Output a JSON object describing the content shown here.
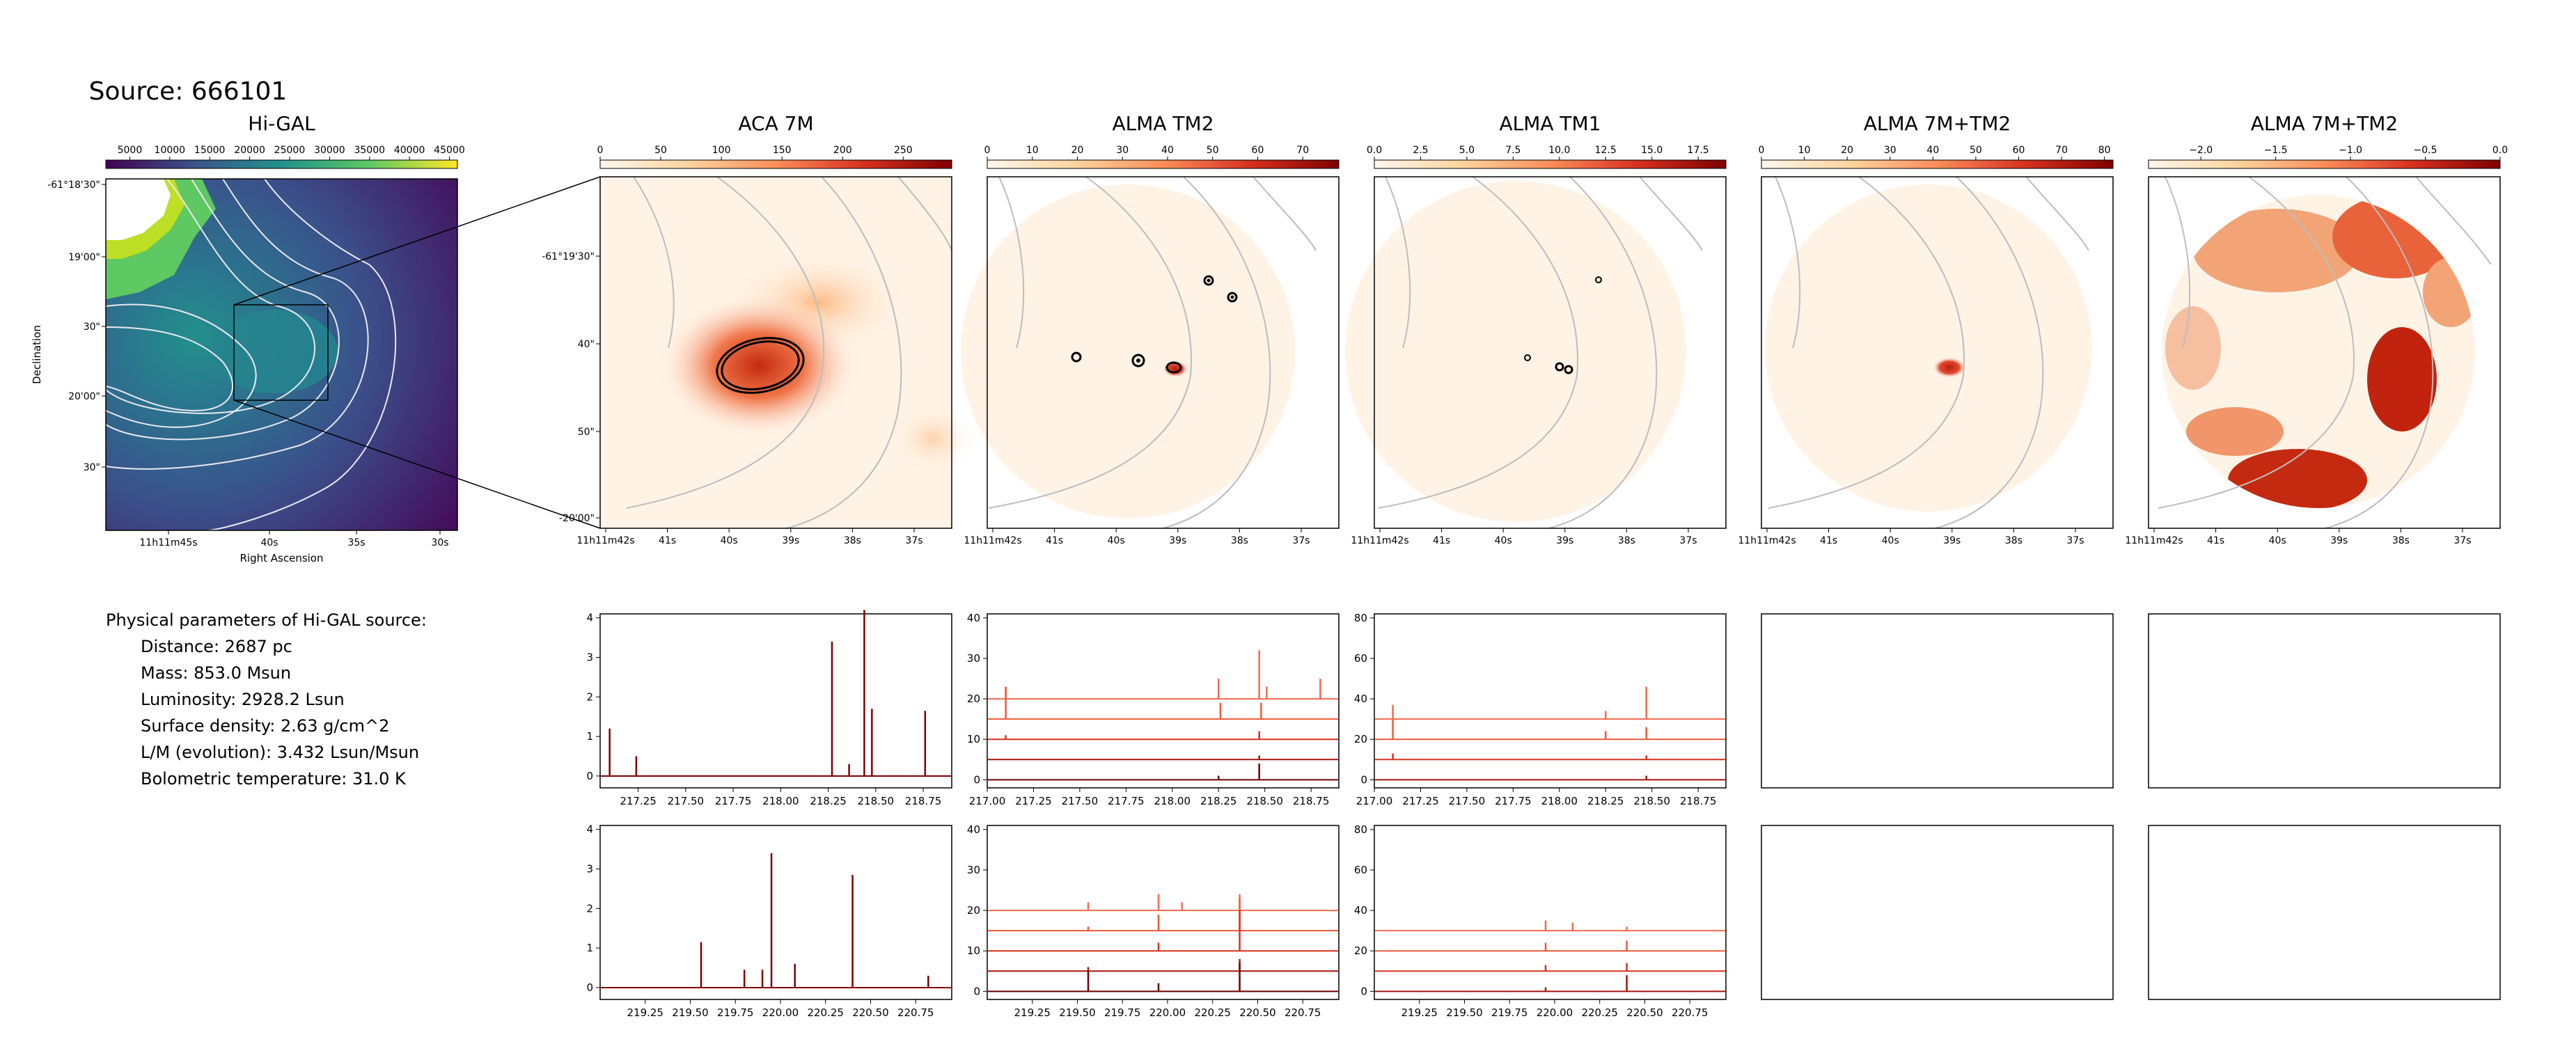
{
  "source_title": "Source: 666101",
  "colors": {
    "ink": "#000000",
    "contour": "#bdbdbd",
    "higal_contour": "#e8e8f0",
    "disk": "#fff3e6"
  },
  "parameters": {
    "heading": "Physical parameters of Hi-GAL source:",
    "lines": [
      "Distance: 2687 pc",
      "Mass: 853.0 Msun",
      "Luminosity: 2928.2 Lsun",
      "Surface density: 2.63 g/cm^2",
      "L/M (evolution): 3.432 Lsun/Msun",
      "Bolometric temperature: 31.0 K"
    ]
  },
  "chart_data": [
    {
      "type": "heatmap",
      "title": "Hi-GAL",
      "colormap": "viridis",
      "colorbar_ticks": [
        "5000",
        "10000",
        "15000",
        "20000",
        "25000",
        "30000",
        "35000",
        "40000",
        "45000"
      ],
      "colorbar_range": [
        2000,
        46000
      ],
      "xlabel": "Right Ascension",
      "ylabel": "Declination",
      "xticks": [
        "11h11m45s",
        "40s",
        "35s",
        "30s"
      ],
      "yticks": [
        "-61°18'30\"",
        "19'00\"",
        "30\"",
        "20'00\"",
        "30\""
      ]
    },
    {
      "type": "heatmap",
      "title": "ACA 7M",
      "colormap": "OrRd",
      "colorbar_ticks": [
        "0",
        "50",
        "100",
        "150",
        "200",
        "250"
      ],
      "colorbar_range": [
        0,
        290
      ],
      "xticks": [
        "11h11m42s",
        "41s",
        "40s",
        "39s",
        "38s",
        "37s"
      ],
      "yticks": [
        "-61°19'30\"",
        "40\"",
        "50\"",
        "-20'00\""
      ]
    },
    {
      "type": "heatmap",
      "title": "ALMA TM2",
      "colormap": "OrRd",
      "colorbar_ticks": [
        "0",
        "10",
        "20",
        "30",
        "40",
        "50",
        "60",
        "70"
      ],
      "colorbar_range": [
        0,
        78
      ],
      "xticks": [
        "11h11m42s",
        "41s",
        "40s",
        "39s",
        "38s",
        "37s"
      ]
    },
    {
      "type": "heatmap",
      "title": "ALMA TM1",
      "colormap": "OrRd",
      "colorbar_ticks": [
        "0.0",
        "2.5",
        "5.0",
        "7.5",
        "10.0",
        "12.5",
        "15.0",
        "17.5"
      ],
      "colorbar_range": [
        0,
        19
      ],
      "xticks": [
        "11h11m42s",
        "41s",
        "40s",
        "39s",
        "38s",
        "37s"
      ]
    },
    {
      "type": "heatmap",
      "title": "ALMA 7M+TM2",
      "colormap": "OrRd",
      "colorbar_ticks": [
        "0",
        "10",
        "20",
        "30",
        "40",
        "50",
        "60",
        "70",
        "80"
      ],
      "colorbar_range": [
        0,
        82
      ],
      "xticks": [
        "11h11m42s",
        "41s",
        "40s",
        "39s",
        "38s",
        "37s"
      ]
    },
    {
      "type": "heatmap",
      "title": "ALMA 7M+TM2",
      "colormap": "OrRd",
      "colorbar_ticks": [
        "−2.0",
        "−1.5",
        "−1.0",
        "−0.5",
        "0.0"
      ],
      "colorbar_range": [
        -2.35,
        0
      ],
      "xticks": [
        "11h11m42s",
        "41s",
        "40s",
        "39s",
        "38s",
        "37s"
      ]
    },
    {
      "type": "line",
      "row": 1,
      "column": "ACA 7M",
      "xlim": [
        217.05,
        218.9
      ],
      "ylim": [
        -0.3,
        4.1
      ],
      "xticks": [
        217.25,
        217.5,
        217.75,
        218.0,
        218.25,
        218.5,
        218.75
      ],
      "yticks": [
        0,
        1,
        2,
        3,
        4
      ],
      "series": [
        {
          "offset": 0,
          "lines": [
            [
              217.1,
              1.2
            ],
            [
              217.24,
              0.5
            ],
            [
              218.27,
              3.4
            ],
            [
              218.36,
              0.3
            ],
            [
              218.44,
              4.2
            ],
            [
              218.48,
              1.7
            ],
            [
              218.76,
              1.65
            ]
          ]
        }
      ]
    },
    {
      "type": "line",
      "row": 1,
      "column": "ALMA TM2",
      "xlim": [
        217.0,
        218.9
      ],
      "ylim": [
        -2,
        41
      ],
      "xticks": [
        217.0,
        217.25,
        217.5,
        217.75,
        218.0,
        218.25,
        218.5,
        218.75
      ],
      "yticks": [
        0,
        10,
        20,
        30,
        40
      ],
      "series": [
        {
          "offset": 20,
          "lines": [
            [
              217.1,
              3
            ],
            [
              218.25,
              5
            ],
            [
              218.47,
              12
            ],
            [
              218.51,
              3
            ],
            [
              218.8,
              5
            ]
          ]
        },
        {
          "offset": 15,
          "lines": [
            [
              217.1,
              8
            ],
            [
              218.26,
              4
            ],
            [
              218.48,
              4
            ]
          ]
        },
        {
          "offset": 10,
          "lines": [
            [
              217.1,
              1
            ],
            [
              218.47,
              2
            ]
          ]
        },
        {
          "offset": 5,
          "lines": [
            [
              218.47,
              1
            ]
          ]
        },
        {
          "offset": 0,
          "lines": [
            [
              218.47,
              4
            ],
            [
              218.25,
              1
            ]
          ]
        }
      ]
    },
    {
      "type": "line",
      "row": 1,
      "column": "ALMA TM1",
      "xlim": [
        217.0,
        218.9
      ],
      "ylim": [
        -4,
        82
      ],
      "xticks": [
        217.0,
        217.25,
        217.5,
        217.75,
        218.0,
        218.25,
        218.5,
        218.75
      ],
      "yticks": [
        0,
        20,
        40,
        60,
        80
      ],
      "series": [
        {
          "offset": 30,
          "lines": [
            [
              217.1,
              7
            ],
            [
              218.25,
              4
            ],
            [
              218.47,
              16
            ]
          ]
        },
        {
          "offset": 20,
          "lines": [
            [
              217.1,
              10
            ],
            [
              218.25,
              4
            ],
            [
              218.47,
              6
            ]
          ]
        },
        {
          "offset": 10,
          "lines": [
            [
              217.1,
              3
            ],
            [
              218.47,
              2
            ]
          ]
        },
        {
          "offset": 0,
          "lines": [
            [
              218.47,
              2
            ]
          ]
        }
      ]
    },
    {
      "type": "line",
      "row": 2,
      "column": "ACA 7M",
      "xlim": [
        219.0,
        220.95
      ],
      "ylim": [
        -0.3,
        4.1
      ],
      "xticks": [
        219.25,
        219.5,
        219.75,
        220.0,
        220.25,
        220.5,
        220.75
      ],
      "yticks": [
        0,
        1,
        2,
        3,
        4
      ],
      "series": [
        {
          "offset": 0,
          "lines": [
            [
              219.56,
              1.15
            ],
            [
              219.8,
              0.45
            ],
            [
              219.9,
              0.45
            ],
            [
              219.95,
              3.4
            ],
            [
              220.08,
              0.6
            ],
            [
              220.4,
              2.85
            ],
            [
              220.82,
              0.3
            ]
          ]
        }
      ]
    },
    {
      "type": "line",
      "row": 2,
      "column": "ALMA TM2",
      "xlim": [
        219.0,
        220.95
      ],
      "ylim": [
        -2,
        41
      ],
      "xticks": [
        219.25,
        219.5,
        219.75,
        220.0,
        220.25,
        220.5,
        220.75
      ],
      "yticks": [
        0,
        10,
        20,
        30,
        40
      ],
      "series": [
        {
          "offset": 20,
          "lines": [
            [
              219.56,
              2
            ],
            [
              219.95,
              4
            ],
            [
              220.08,
              2
            ],
            [
              220.4,
              4
            ]
          ]
        },
        {
          "offset": 15,
          "lines": [
            [
              219.56,
              1
            ],
            [
              219.95,
              4
            ],
            [
              220.4,
              8
            ]
          ]
        },
        {
          "offset": 10,
          "lines": [
            [
              219.95,
              2
            ],
            [
              220.4,
              10
            ]
          ]
        },
        {
          "offset": 5,
          "lines": [
            [
              219.56,
              1
            ],
            [
              220.4,
              3
            ]
          ]
        },
        {
          "offset": 0,
          "lines": [
            [
              219.56,
              5
            ],
            [
              219.95,
              2
            ],
            [
              220.4,
              7
            ]
          ]
        }
      ]
    },
    {
      "type": "line",
      "row": 2,
      "column": "ALMA TM1",
      "xlim": [
        219.0,
        220.95
      ],
      "ylim": [
        -4,
        82
      ],
      "xticks": [
        219.25,
        219.5,
        219.75,
        220.0,
        220.25,
        220.5,
        220.75
      ],
      "yticks": [
        0,
        20,
        40,
        60,
        80
      ],
      "series": [
        {
          "offset": 30,
          "lines": [
            [
              219.95,
              5
            ],
            [
              220.1,
              4
            ],
            [
              220.4,
              2
            ]
          ]
        },
        {
          "offset": 20,
          "lines": [
            [
              219.95,
              4
            ],
            [
              220.4,
              5
            ]
          ]
        },
        {
          "offset": 10,
          "lines": [
            [
              219.95,
              3
            ],
            [
              220.4,
              4
            ]
          ]
        },
        {
          "offset": 0,
          "lines": [
            [
              219.95,
              2
            ],
            [
              220.4,
              8
            ]
          ]
        }
      ]
    }
  ]
}
